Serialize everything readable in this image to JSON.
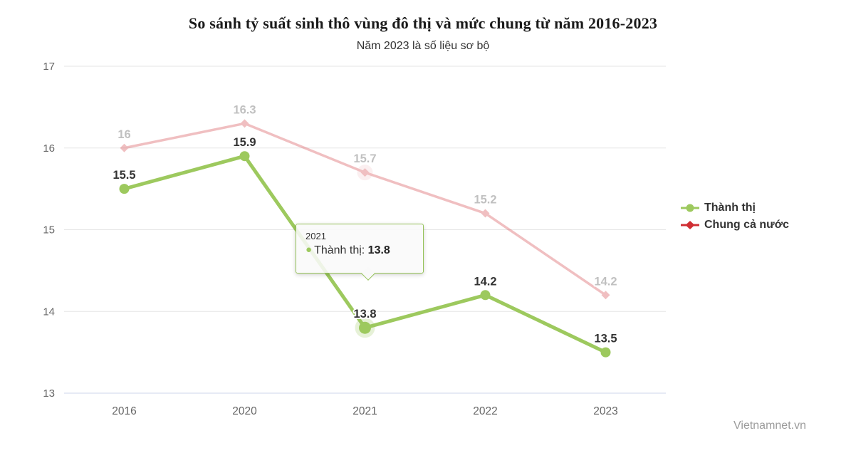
{
  "chart_data": {
    "type": "line",
    "title": "So sánh tỷ suất sinh thô vùng đô thị và mức chung từ năm 2016-2023",
    "subtitle": "Năm 2023 là số liệu sơ bộ",
    "categories": [
      "2016",
      "2020",
      "2021",
      "2022",
      "2023"
    ],
    "series": [
      {
        "name": "Chung cả nước",
        "values": [
          16,
          16.3,
          15.7,
          15.2,
          14.2
        ],
        "color": "#d02f34",
        "marker": "diamond",
        "dimmed": true
      },
      {
        "name": "Thành thị",
        "values": [
          15.5,
          15.9,
          13.8,
          14.2,
          13.5
        ],
        "color": "#9dc95e",
        "marker": "circle",
        "dimmed": false
      }
    ],
    "ylim": [
      13,
      17
    ],
    "yticks": [
      13,
      14,
      15,
      16,
      17
    ],
    "xlabel": "",
    "ylabel": "",
    "grid": true,
    "legend_position": "right",
    "hover": {
      "category": "2021",
      "series": "Thành thị",
      "value": "13.8",
      "separator": ": "
    }
  },
  "colors": {
    "grid_line": "#e6e6e6",
    "axis_line": "#ccd6eb",
    "axis_label": "#666666",
    "data_label": "#333333",
    "tooltip_border": "#94c257"
  },
  "watermark": "Vietnamnet.vn"
}
